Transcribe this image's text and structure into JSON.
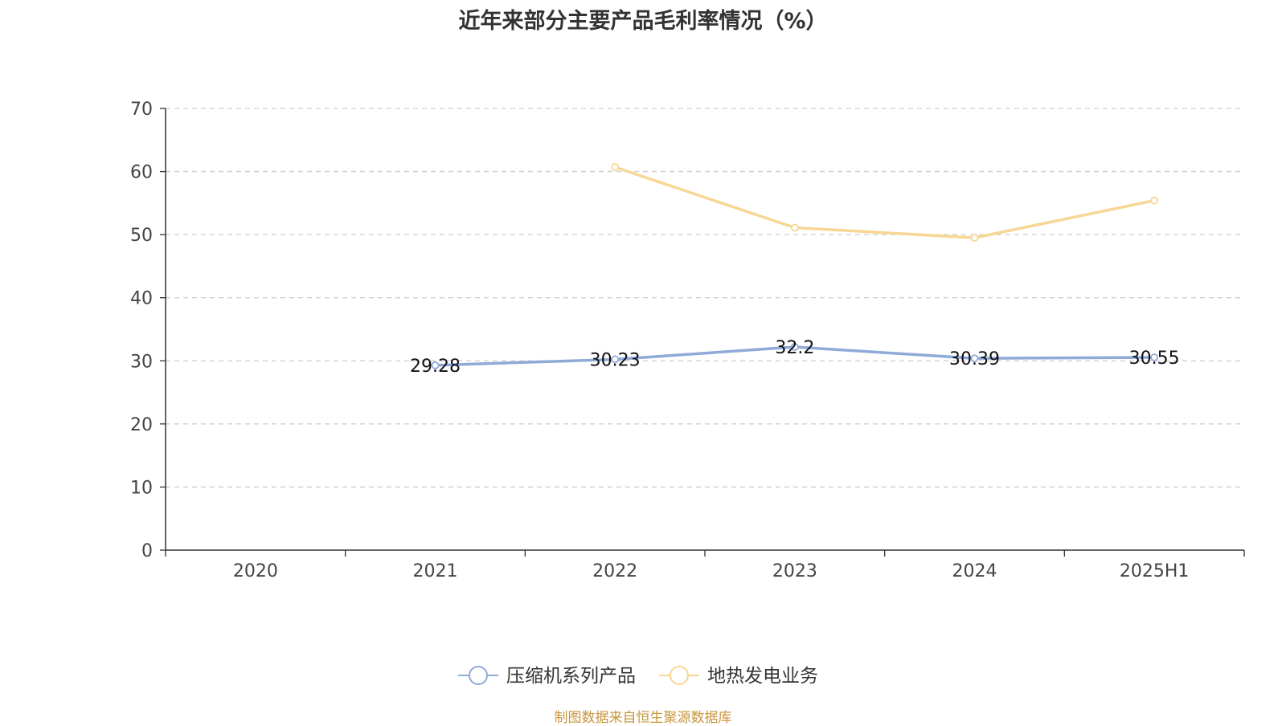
{
  "chart_data": {
    "type": "line",
    "title": "近年来部分主要产品毛利率情况（%）",
    "categories": [
      "2020",
      "2021",
      "2022",
      "2023",
      "2024",
      "2025H1"
    ],
    "ylim": [
      0,
      70
    ],
    "yticks": [
      0,
      10,
      20,
      30,
      40,
      50,
      60,
      70
    ],
    "grid": true,
    "legend_position": "bottom-center",
    "series": [
      {
        "name": "压缩机系列产品",
        "color": "#8eaad8",
        "values": [
          null,
          29.28,
          30.23,
          32.2,
          30.39,
          30.55
        ],
        "show_labels": true,
        "labels": [
          null,
          "29.28",
          "30.23",
          "32.2",
          "30.39",
          "30.55"
        ]
      },
      {
        "name": "地热发电业务",
        "color": "#f8d694",
        "values": [
          null,
          null,
          60.7,
          51.1,
          49.5,
          55.4
        ],
        "show_labels": false
      }
    ]
  },
  "source_note": "制图数据来自恒生聚源数据库"
}
